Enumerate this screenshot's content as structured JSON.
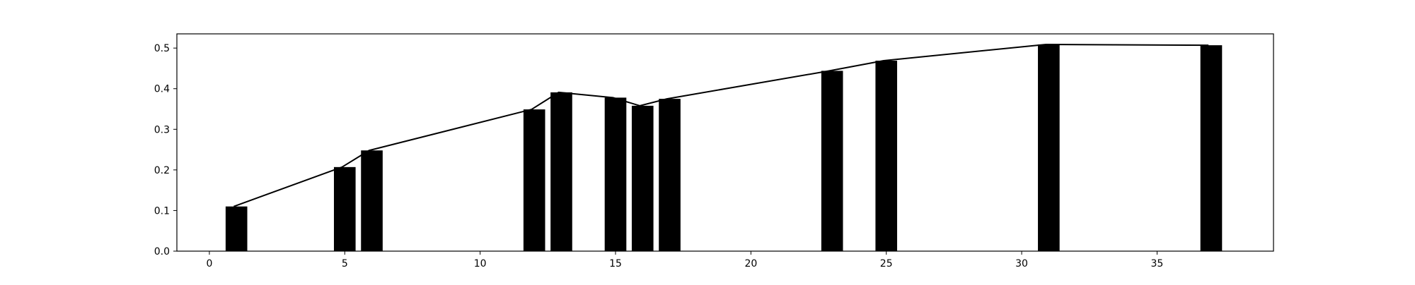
{
  "chart_data": {
    "type": "bar",
    "title": "",
    "xlabel": "",
    "ylabel": "",
    "xlim": [
      -1.2,
      39.3
    ],
    "ylim": [
      0,
      0.535
    ],
    "xticks": [
      0,
      5,
      10,
      15,
      20,
      25,
      30,
      35
    ],
    "yticks": [
      0.0,
      0.1,
      0.2,
      0.3,
      0.4,
      0.5
    ],
    "xtick_labels": [
      "0",
      "5",
      "10",
      "15",
      "20",
      "25",
      "30",
      "35"
    ],
    "ytick_labels": [
      "0.0",
      "0.1",
      "0.2",
      "0.3",
      "0.4",
      "0.5"
    ],
    "grid": false,
    "bar_color": "#000000",
    "line_color": "#000000",
    "bars": {
      "x": [
        1,
        5,
        6,
        12,
        13,
        15,
        16,
        17,
        23,
        25,
        31,
        37
      ],
      "values": [
        0.11,
        0.207,
        0.248,
        0.349,
        0.391,
        0.378,
        0.358,
        0.375,
        0.444,
        0.469,
        0.509,
        0.507
      ],
      "width": 0.8
    },
    "line": {
      "x": [
        0.9,
        4.9,
        5.9,
        11.9,
        12.9,
        14.9,
        15.9,
        16.9,
        22.9,
        24.9,
        30.9,
        36.9
      ],
      "values": [
        0.11,
        0.207,
        0.248,
        0.349,
        0.391,
        0.378,
        0.358,
        0.375,
        0.444,
        0.469,
        0.509,
        0.507
      ]
    }
  }
}
